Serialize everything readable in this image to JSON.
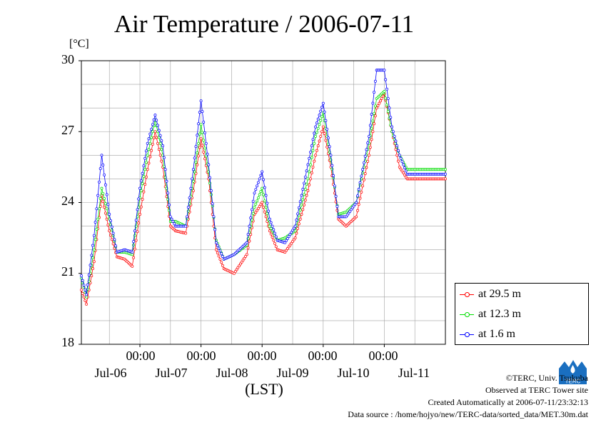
{
  "title": "Air Temperature / 2006-07-11",
  "unit": "[°C]",
  "x_axis_label": "(LST)",
  "time_ticks": [
    "00:00",
    "00:00",
    "00:00",
    "00:00",
    "00:00"
  ],
  "date_ticks": [
    "Jul-06",
    "Jul-07",
    "Jul-08",
    "Jul-09",
    "Jul-10",
    "Jul-11"
  ],
  "y_ticks": [
    "30",
    "27",
    "24",
    "21",
    "18"
  ],
  "legend": [
    "at 29.5 m",
    "at 12.3 m",
    "at 1.6 m"
  ],
  "credits": {
    "copyright": "©TERC, Univ. Tsukuba",
    "observed": "Observed at TERC Tower site",
    "created": "Created Automatically at 2006-07-11/23:32:13",
    "source": "Data source : /home/hojyo/new/TERC-data/sorted_data/MET.30m.dat"
  },
  "logo_text": "TERC",
  "colors": {
    "series_29_5": "#ff0000",
    "series_12_3": "#00dd00",
    "series_1_6": "#0000ff",
    "grid": "#a0a0a0",
    "logo": "#1a6fc0"
  },
  "chart_data": {
    "type": "line",
    "title": "Air Temperature / 2006-07-11",
    "ylabel": "[°C]",
    "xlabel": "(LST)",
    "ylim": [
      18,
      30
    ],
    "xlim": [
      "2006-07-06T01:00",
      "2006-07-12T00:00"
    ],
    "grid": true,
    "legend_position": "outside-right-bottom",
    "x": [
      "2006-07-06T01:00",
      "2006-07-06T03:00",
      "2006-07-06T06:00",
      "2006-07-06T09:00",
      "2006-07-06T12:00",
      "2006-07-06T15:00",
      "2006-07-06T18:00",
      "2006-07-06T21:00",
      "2006-07-07T00:00",
      "2006-07-07T03:00",
      "2006-07-07T06:00",
      "2006-07-07T09:00",
      "2006-07-07T12:00",
      "2006-07-07T14:00",
      "2006-07-07T18:00",
      "2006-07-07T21:00",
      "2006-07-08T00:00",
      "2006-07-08T03:00",
      "2006-07-08T06:00",
      "2006-07-08T09:00",
      "2006-07-08T13:00",
      "2006-07-08T18:00",
      "2006-07-08T21:00",
      "2006-07-09T00:00",
      "2006-07-09T03:00",
      "2006-07-09T06:00",
      "2006-07-09T09:00",
      "2006-07-09T13:00",
      "2006-07-09T18:00",
      "2006-07-09T21:00",
      "2006-07-10T00:00",
      "2006-07-10T03:00",
      "2006-07-10T06:00",
      "2006-07-10T09:00",
      "2006-07-10T13:00",
      "2006-07-10T18:00",
      "2006-07-10T21:00",
      "2006-07-11T00:00",
      "2006-07-11T03:00",
      "2006-07-11T06:00",
      "2006-07-11T09:00",
      "2006-07-11T13:00",
      "2006-07-11T18:00",
      "2006-07-11T21:00",
      "2006-07-12T00:00"
    ],
    "series": [
      {
        "name": "at 29.5 m",
        "values": [
          20.3,
          19.7,
          21.5,
          24.3,
          22.8,
          21.7,
          21.6,
          21.3,
          23.5,
          25.4,
          27.0,
          25.5,
          23.0,
          22.8,
          22.7,
          24.5,
          26.7,
          25.0,
          22.0,
          21.2,
          21.0,
          21.8,
          23.5,
          24.0,
          22.8,
          22.0,
          21.9,
          22.5,
          24.5,
          26.0,
          27.2,
          25.5,
          23.3,
          23.0,
          23.4,
          26.0,
          28.0,
          28.6,
          27.0,
          25.5,
          25.0,
          25.0,
          25.0,
          25.0,
          25.0
        ]
      },
      {
        "name": "at 12.3 m",
        "values": [
          20.8,
          20.0,
          22.0,
          24.6,
          23.3,
          21.9,
          21.9,
          21.8,
          24.2,
          26.0,
          27.5,
          26.0,
          23.2,
          23.2,
          23.0,
          24.9,
          27.3,
          25.3,
          22.4,
          21.6,
          21.8,
          22.2,
          23.8,
          24.6,
          23.0,
          22.4,
          22.5,
          22.8,
          25.0,
          26.8,
          27.8,
          25.8,
          23.5,
          23.6,
          24.0,
          26.5,
          28.4,
          28.7,
          27.0,
          26.0,
          25.4,
          25.4,
          25.4,
          25.4,
          25.4
        ]
      },
      {
        "name": "at 1.6 m",
        "values": [
          20.9,
          20.1,
          22.6,
          26.0,
          23.5,
          21.9,
          22.0,
          21.9,
          24.6,
          26.5,
          27.7,
          26.4,
          23.4,
          23.0,
          23.0,
          25.4,
          28.3,
          25.6,
          22.3,
          21.6,
          21.8,
          22.3,
          24.4,
          25.3,
          23.3,
          22.4,
          22.3,
          23.0,
          25.6,
          27.2,
          28.2,
          26.0,
          23.4,
          23.4,
          24.0,
          26.8,
          29.6,
          29.6,
          27.2,
          26.0,
          25.2,
          25.2,
          25.2,
          25.2,
          25.2
        ]
      }
    ]
  }
}
